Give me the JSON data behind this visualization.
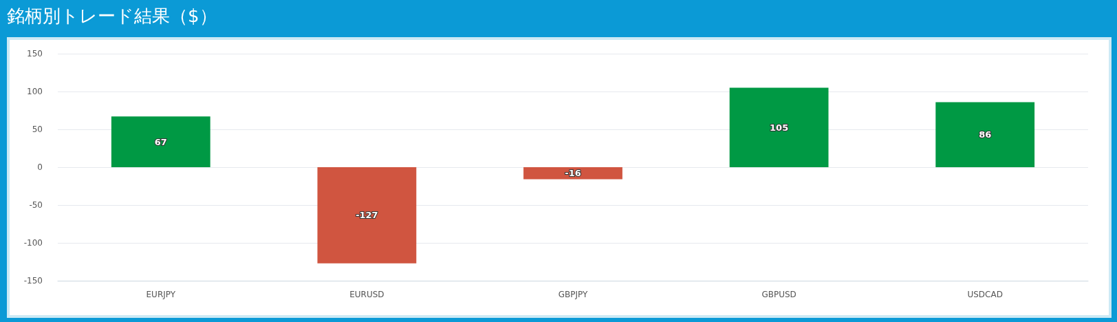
{
  "chart_data": {
    "type": "bar",
    "title": "銘柄別トレード結果（$）",
    "categories": [
      "EURJPY",
      "EURUSD",
      "GBPJPY",
      "GBPUSD",
      "USDCAD"
    ],
    "values": [
      67,
      -127,
      -16,
      105,
      86
    ],
    "colors": [
      "#009944",
      "#d05540",
      "#d05540",
      "#009944",
      "#009944"
    ],
    "ylim": [
      -150,
      150
    ],
    "yticks": [
      -150,
      -100,
      -50,
      0,
      50,
      100,
      150
    ],
    "grid": "y",
    "data_labels": true
  }
}
